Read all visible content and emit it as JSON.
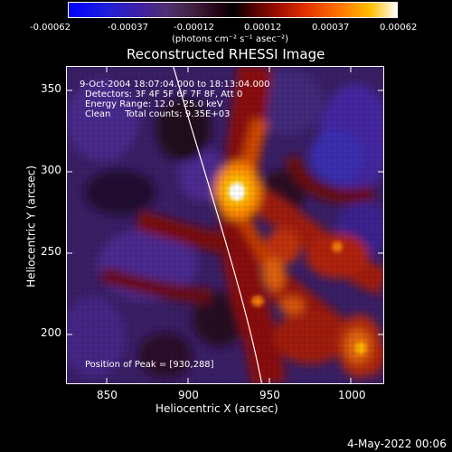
{
  "colorbar": {
    "ticks": [
      "-0.00062",
      "-0.00037",
      "-0.00012",
      "0.00012",
      "0.00037",
      "0.00062"
    ],
    "unit_label": "(photons cm⁻² s⁻¹ asec⁻²)"
  },
  "plot": {
    "title": "Reconstructed RHESSI Image",
    "xlabel": "Heliocentric X (arcsec)",
    "ylabel": "Heliocentric Y (arcsec)",
    "xticks": [
      "850",
      "900",
      "950",
      "1000"
    ],
    "yticks": [
      "350",
      "300",
      "250",
      "200"
    ],
    "info": {
      "line1": "9-Oct-2004 18:07:04.000 to 18:13:04.000",
      "line2": "Detectors: 3F 4F 5F 6F 7F 8F, Att 0",
      "line3": "Energy Range: 12.0 - 25.0 keV",
      "line4": "Clean     Total counts: 9.35E+03"
    },
    "peak_text": "Position of Peak = [930,288]"
  },
  "footer_date": "4-May-2022 00:06"
}
